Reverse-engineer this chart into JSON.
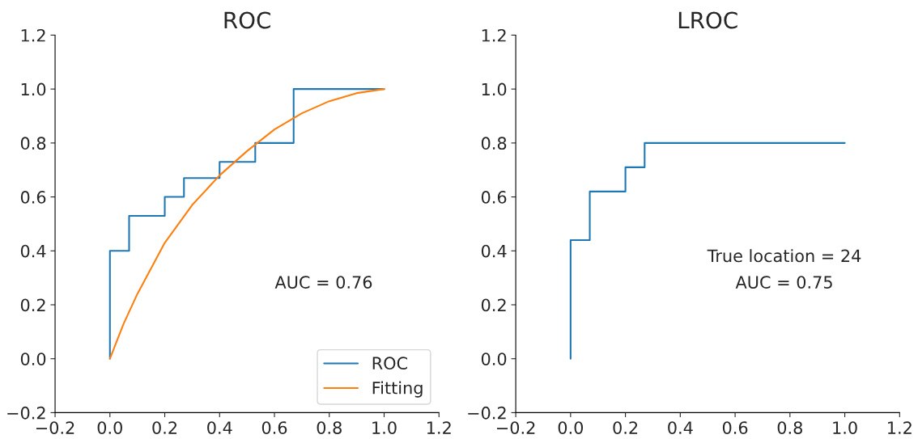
{
  "chart_data": [
    {
      "type": "line",
      "title": "ROC",
      "xlim": [
        -0.2,
        1.2
      ],
      "ylim": [
        -0.2,
        1.2
      ],
      "xticks": [
        {
          "value": -0.2,
          "label": "−0.2"
        },
        {
          "value": 0,
          "label": "0.0"
        },
        0.2,
        0.4,
        0.6,
        0.8,
        {
          "value": 1,
          "label": "1.0"
        },
        1.2
      ],
      "yticks": [
        {
          "value": -0.2,
          "label": "−0.2"
        },
        {
          "value": 0,
          "label": "0.0"
        },
        0.2,
        0.4,
        0.6,
        0.8,
        {
          "value": 1,
          "label": "1.0"
        },
        1.2
      ],
      "grid": false,
      "legend": "bottom right",
      "annotations": [
        "AUC = 0.76"
      ],
      "series": [
        {
          "name": "ROC",
          "type": "step",
          "color": "#1f77b4",
          "x": [
            0,
            0,
            0.07,
            0.2,
            0.27,
            0.4,
            0.53,
            0.67,
            1.0
          ],
          "values": [
            0,
            0.4,
            0.53,
            0.6,
            0.67,
            0.73,
            0.8,
            1.0,
            1.0
          ]
        },
        {
          "name": "Fitting",
          "type": "line",
          "color": "#ff7f0e",
          "x": [
            0,
            0.05,
            0.1,
            0.2,
            0.3,
            0.4,
            0.5,
            0.6,
            0.7,
            0.8,
            0.9,
            1.0
          ],
          "values": [
            0,
            0.13,
            0.24,
            0.43,
            0.57,
            0.68,
            0.77,
            0.85,
            0.91,
            0.955,
            0.985,
            1.0
          ]
        }
      ]
    },
    {
      "type": "step",
      "title": "LROC",
      "xlim": [
        -0.2,
        1.2
      ],
      "ylim": [
        -0.2,
        1.2
      ],
      "xticks": [
        {
          "value": -0.2,
          "label": "−0.2"
        },
        {
          "value": 0,
          "label": "0.0"
        },
        0.2,
        0.4,
        0.6,
        0.8,
        {
          "value": 1,
          "label": "1.0"
        },
        1.2
      ],
      "yticks": [
        {
          "value": -0.2,
          "label": "−0.2"
        },
        {
          "value": 0,
          "label": "0.0"
        },
        0.2,
        0.4,
        0.6,
        0.8,
        {
          "value": 1,
          "label": "1.0"
        },
        1.2
      ],
      "grid": false,
      "legend": false,
      "annotations": [
        "True location = 24",
        "AUC = 0.75"
      ],
      "series": [
        {
          "color": "#1f77b4",
          "x": [
            0,
            0,
            0.07,
            0.2,
            0.27,
            1.0
          ],
          "values": [
            0,
            0.44,
            0.62,
            0.71,
            0.8,
            0.8
          ]
        }
      ]
    }
  ]
}
